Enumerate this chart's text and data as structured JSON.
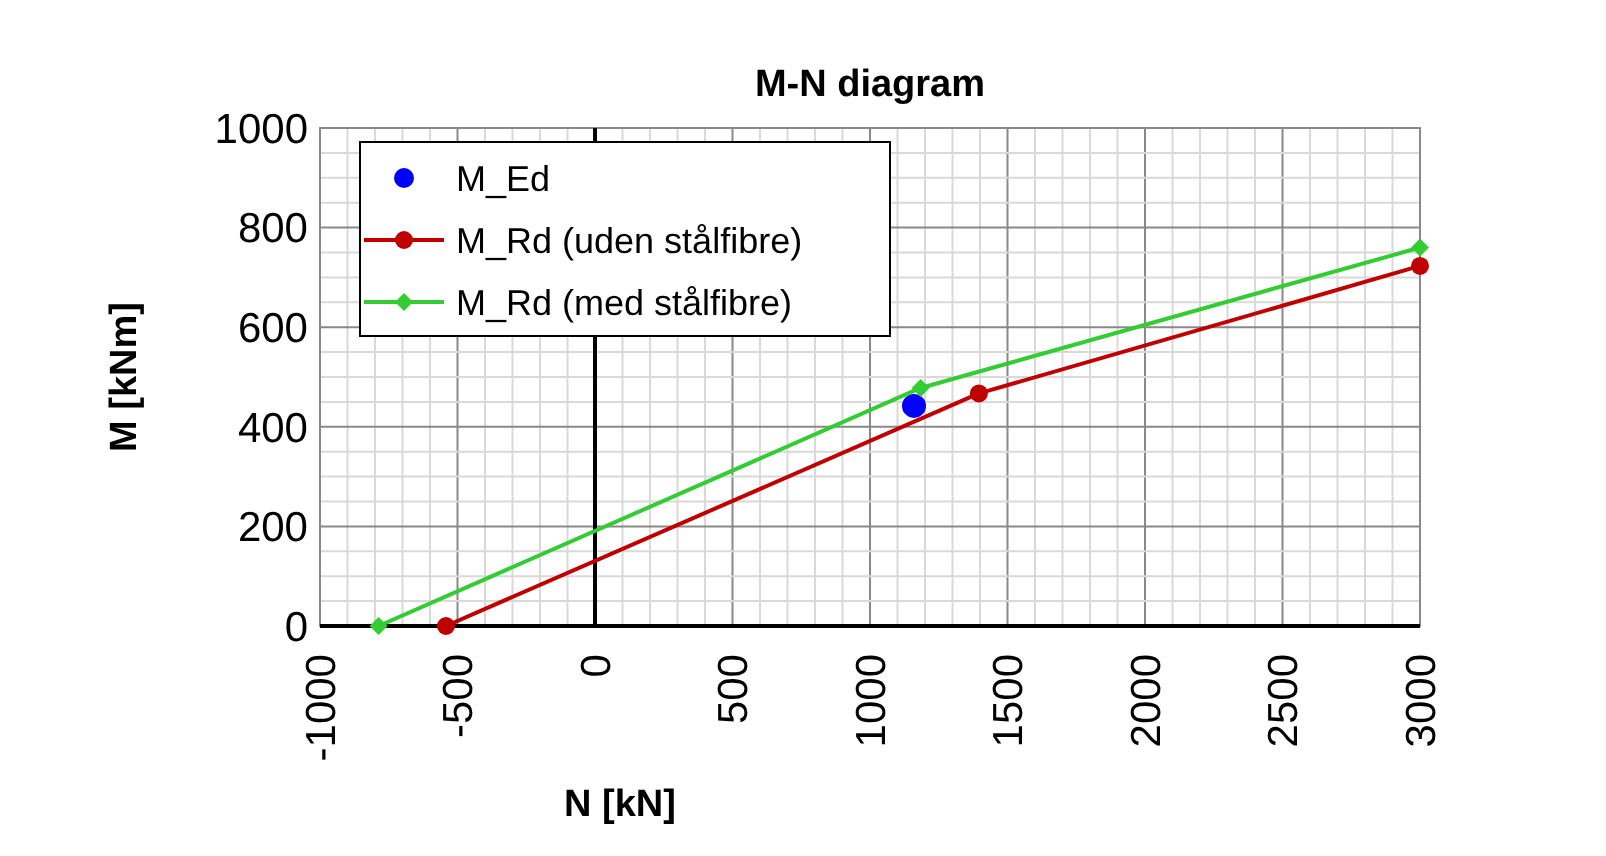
{
  "chart_data": {
    "type": "line",
    "title": "M-N diagram",
    "xlabel": "N [kN]",
    "ylabel": "M [kNm]",
    "xlim": [
      -1000,
      3000
    ],
    "ylim": [
      0,
      1000
    ],
    "xticks": [
      -1000,
      {
        "value": -900,
        "label": null
      },
      {
        "value": -800,
        "label": null
      },
      {
        "value": -700,
        "label": null
      },
      {
        "value": -600,
        "label": null
      },
      -500,
      {
        "value": -400,
        "label": null
      },
      {
        "value": -300,
        "label": null
      },
      {
        "value": -200,
        "label": null
      },
      {
        "value": -100,
        "label": null
      },
      0,
      {
        "value": 100,
        "label": null
      },
      {
        "value": 200,
        "label": null
      },
      {
        "value": 300,
        "label": null
      },
      {
        "value": 400,
        "label": null
      },
      500,
      {
        "value": 600,
        "label": null
      },
      {
        "value": 700,
        "label": null
      },
      {
        "value": 800,
        "label": null
      },
      {
        "value": 900,
        "label": null
      },
      1000,
      {
        "value": 1100,
        "label": null
      },
      {
        "value": 1200,
        "label": null
      },
      {
        "value": 1300,
        "label": null
      },
      {
        "value": 1400,
        "label": null
      },
      1500,
      {
        "value": 1600,
        "label": null
      },
      {
        "value": 1700,
        "label": null
      },
      {
        "value": 1800,
        "label": null
      },
      {
        "value": 1900,
        "label": null
      },
      2000,
      {
        "value": 2100,
        "label": null
      },
      {
        "value": 2200,
        "label": null
      },
      {
        "value": 2300,
        "label": null
      },
      {
        "value": 2400,
        "label": null
      },
      2500,
      {
        "value": 2600,
        "label": null
      },
      {
        "value": 2700,
        "label": null
      },
      {
        "value": 2800,
        "label": null
      },
      {
        "value": 2900,
        "label": null
      },
      3000
    ],
    "yticks": [
      0,
      {
        "value": 50,
        "label": null
      },
      {
        "value": 100,
        "label": null
      },
      {
        "value": 150,
        "label": null
      },
      200,
      {
        "value": 250,
        "label": null
      },
      {
        "value": 300,
        "label": null
      },
      {
        "value": 350,
        "label": null
      },
      400,
      {
        "value": 450,
        "label": null
      },
      {
        "value": 500,
        "label": null
      },
      {
        "value": 550,
        "label": null
      },
      600,
      {
        "value": 650,
        "label": null
      },
      {
        "value": 700,
        "label": null
      },
      {
        "value": 750,
        "label": null
      },
      800,
      {
        "value": 850,
        "label": null
      },
      {
        "value": 900,
        "label": null
      },
      {
        "value": 950,
        "label": null
      },
      1000
    ],
    "grid": true,
    "legend": "top left",
    "series": [
      {
        "name": "M_Ed",
        "type": "scatter",
        "color": "#0000ff",
        "marker": "circle",
        "x": [
          1160
        ],
        "values": [
          442
        ]
      },
      {
        "name": "M_Rd (uden stålfibre)",
        "color": "#c00000",
        "marker": "circle",
        "line_style": "solid",
        "x": [
          -542,
          1396,
          3000
        ],
        "values": [
          0,
          467,
          723
        ]
      },
      {
        "name": "M_Rd (med stålfibre)",
        "color": "#33cc33",
        "marker": "diamond",
        "line_style": "solid",
        "x": [
          -787,
          1184,
          3000
        ],
        "values": [
          0,
          478,
          760
        ]
      }
    ]
  }
}
